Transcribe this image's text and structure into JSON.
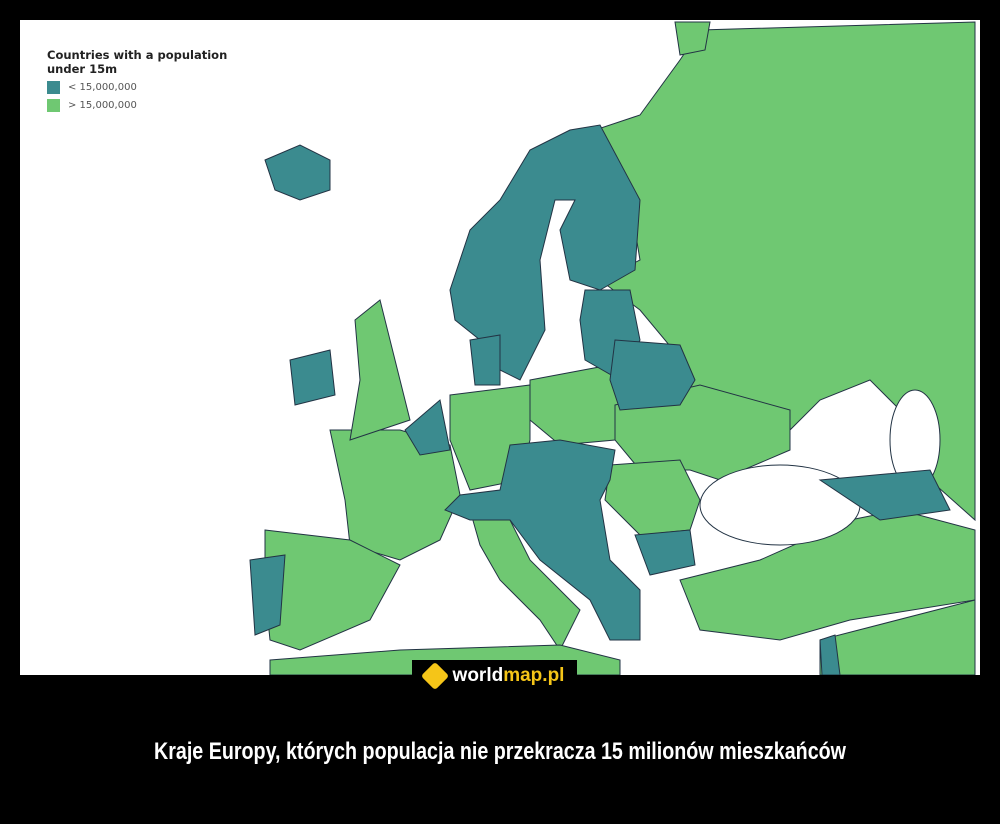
{
  "legend": {
    "title": "Countries with a population under 15m",
    "items": [
      {
        "label": "< 15,000,000",
        "color": "#3b8b8f"
      },
      {
        "label": "> 15,000,000",
        "color": "#6fc872"
      }
    ]
  },
  "logo": {
    "part1": "world",
    "part2": "map.pl"
  },
  "caption": "Kraje Europy, których populacja nie przekracza 15 milionów mieszkańców"
}
